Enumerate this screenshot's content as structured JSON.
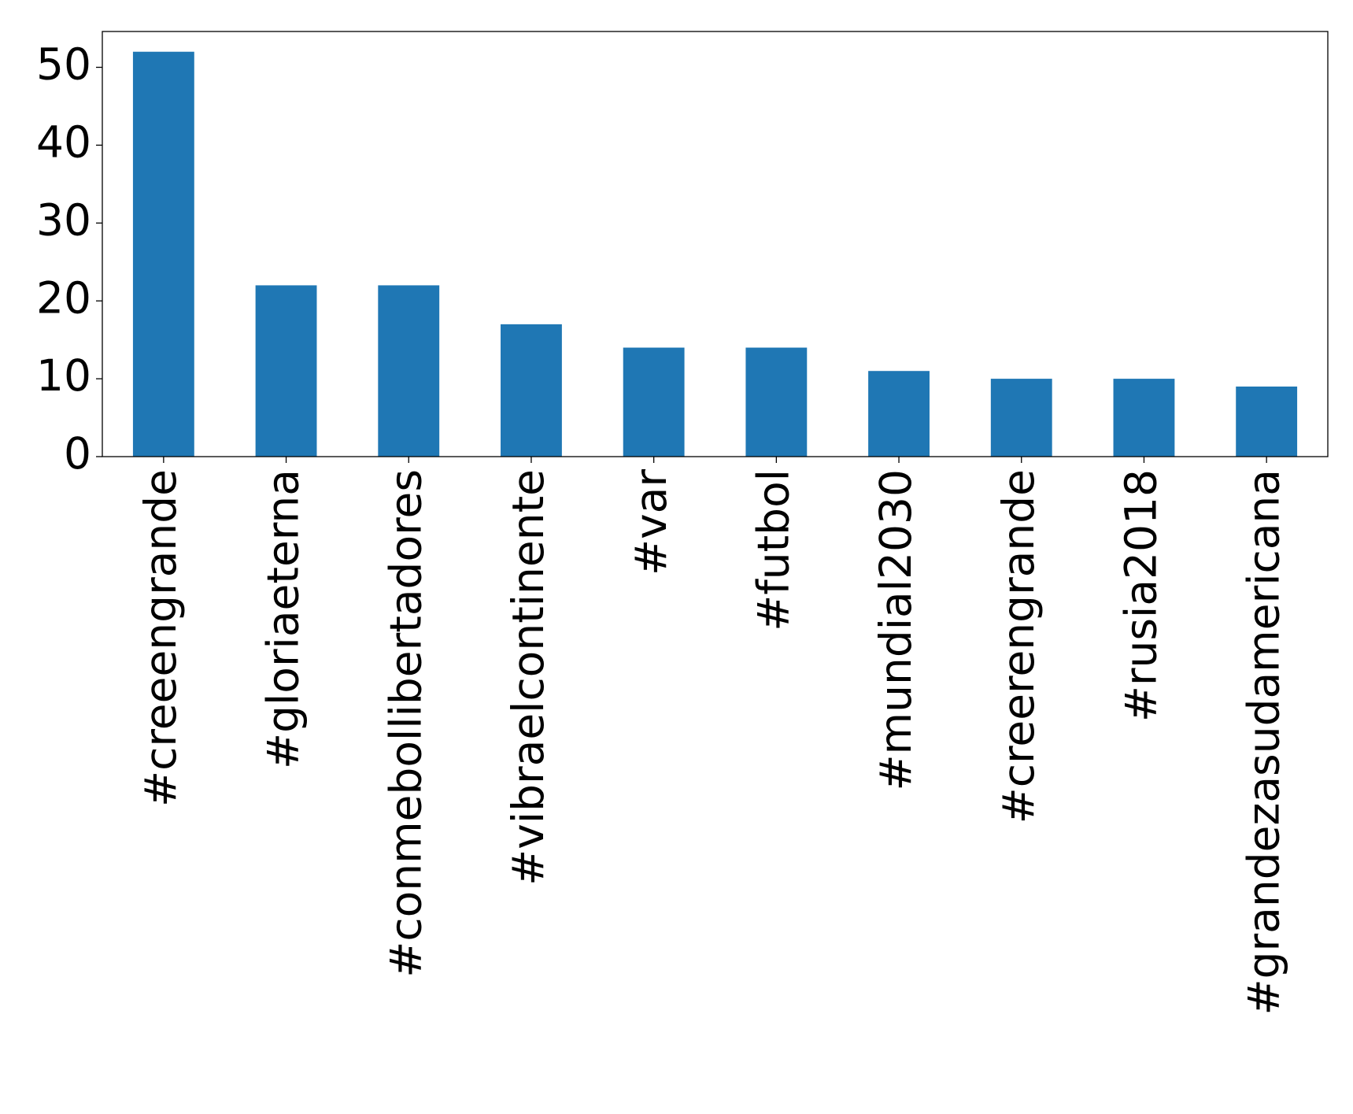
{
  "chart_data": {
    "type": "bar",
    "categories": [
      "#creeengrande",
      "#gloriaeterna",
      "#conmebollibertadores",
      "#vibraelcontinente",
      "#var",
      "#futbol",
      "#mundial2030",
      "#creerengrande",
      "#rusia2018",
      "#grandezasudamericana"
    ],
    "values": [
      52,
      22,
      22,
      17,
      14,
      14,
      11,
      10,
      10,
      9
    ],
    "color": "#1f77b4",
    "ylim": [
      0,
      54.6
    ],
    "yticks": [
      0,
      10,
      20,
      30,
      40,
      50
    ],
    "grid": false
  }
}
